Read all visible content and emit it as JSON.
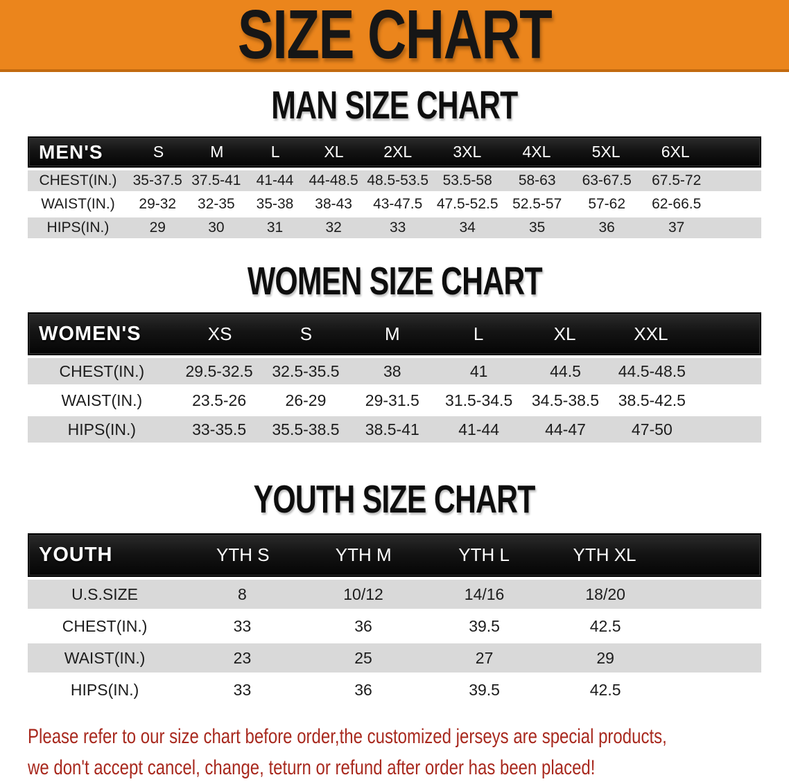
{
  "banner": {
    "title": "SIZE CHART"
  },
  "colors": {
    "banner_orange": "#EB851C",
    "header_black": "#141414",
    "row_gray": "#D9D9D9",
    "note_red": "#A8291E"
  },
  "men_section": {
    "heading": "MAN SIZE CHART",
    "table": {
      "label": "MEN'S",
      "sizes": [
        "S",
        "M",
        "L",
        "XL",
        "2XL",
        "3XL",
        "4XL",
        "5XL",
        "6XL"
      ],
      "rows": [
        {
          "label": "CHEST(IN.)",
          "values": [
            "35-37.5",
            "37.5-41",
            "41-44",
            "44-48.5",
            "48.5-53.5",
            "53.5-58",
            "58-63",
            "63-67.5",
            "67.5-72"
          ]
        },
        {
          "label": "WAIST(IN.)",
          "values": [
            "29-32",
            "32-35",
            "35-38",
            "38-43",
            "43-47.5",
            "47.5-52.5",
            "52.5-57",
            "57-62",
            "62-66.5"
          ]
        },
        {
          "label": "HIPS(IN.)",
          "values": [
            "29",
            "30",
            "31",
            "32",
            "33",
            "34",
            "35",
            "36",
            "37"
          ]
        }
      ]
    }
  },
  "women_section": {
    "heading": "WOMEN SIZE CHART",
    "table": {
      "label": "WOMEN'S",
      "sizes": [
        "XS",
        "S",
        "M",
        "L",
        "XL",
        "XXL"
      ],
      "rows": [
        {
          "label": "CHEST(IN.)",
          "values": [
            "29.5-32.5",
            "32.5-35.5",
            "38",
            "41",
            "44.5",
            "44.5-48.5"
          ]
        },
        {
          "label": "WAIST(IN.)",
          "values": [
            "23.5-26",
            "26-29",
            "29-31.5",
            "31.5-34.5",
            "34.5-38.5",
            "38.5-42.5"
          ]
        },
        {
          "label": "HIPS(IN.)",
          "values": [
            "33-35.5",
            "35.5-38.5",
            "38.5-41",
            "41-44",
            "44-47",
            "47-50"
          ]
        }
      ]
    }
  },
  "youth_section": {
    "heading": "YOUTH SIZE CHART",
    "table": {
      "label": "YOUTH",
      "sizes": [
        "YTH S",
        "YTH M",
        "YTH L",
        "YTH XL"
      ],
      "rows": [
        {
          "label": "U.S.SIZE",
          "values": [
            "8",
            "10/12",
            "14/16",
            "18/20"
          ]
        },
        {
          "label": "CHEST(IN.)",
          "values": [
            "33",
            "36",
            "39.5",
            "42.5"
          ]
        },
        {
          "label": "WAIST(IN.)",
          "values": [
            "23",
            "25",
            "27",
            "29"
          ]
        },
        {
          "label": "HIPS(IN.)",
          "values": [
            "33",
            "36",
            "39.5",
            "42.5"
          ]
        }
      ]
    }
  },
  "note": {
    "line1": "Please refer to our size chart before order,the customized jerseys are special products,",
    "line2": "we don't accept cancel, change, teturn or refund after order has been placed!"
  }
}
